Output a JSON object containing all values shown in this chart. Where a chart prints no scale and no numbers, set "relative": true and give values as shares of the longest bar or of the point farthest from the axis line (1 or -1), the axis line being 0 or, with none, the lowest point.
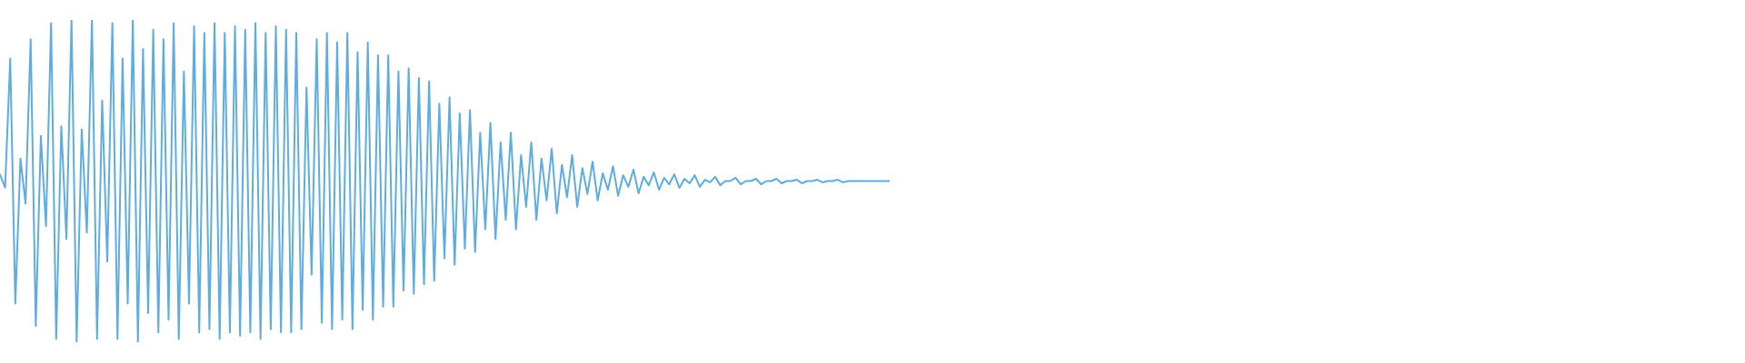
{
  "chart_data": {
    "type": "line",
    "relative": true,
    "color": "#5dade2",
    "categories": [
      null,
      null,
      null,
      null,
      null,
      null,
      null,
      null,
      null,
      null,
      null,
      null,
      null,
      null,
      null,
      null,
      null,
      null,
      null,
      null,
      null,
      null,
      null,
      null,
      null,
      null,
      null,
      null,
      null,
      null,
      null,
      null,
      null,
      null,
      null,
      null,
      null,
      null,
      null,
      null,
      null,
      null,
      null,
      null,
      null,
      null,
      null,
      null,
      null,
      null,
      null,
      null,
      null,
      null,
      null,
      null,
      null,
      null,
      null,
      null,
      null,
      null,
      null,
      null,
      null,
      null,
      null,
      null,
      null,
      null,
      null,
      null,
      null,
      null,
      null,
      null,
      null,
      null,
      null,
      null,
      null,
      null,
      null,
      null,
      null,
      null,
      null,
      null,
      null,
      null,
      null,
      null,
      null,
      null,
      null,
      null,
      null,
      null,
      null,
      null,
      null,
      null,
      null,
      null,
      null,
      null,
      null,
      null,
      null,
      null,
      null,
      null,
      null,
      null,
      null,
      null,
      null,
      null,
      null,
      null,
      null,
      null,
      null,
      null,
      null,
      null,
      null,
      null,
      null,
      null,
      null,
      null,
      null,
      null,
      null,
      null,
      null,
      null,
      null,
      null,
      null,
      null,
      null,
      null,
      null,
      null,
      null,
      null,
      null,
      null,
      null,
      null,
      null,
      null,
      null,
      null,
      null,
      null,
      null,
      null,
      null,
      null,
      null,
      null,
      null,
      null,
      null,
      null,
      null,
      null,
      null,
      null,
      null,
      null,
      null
    ],
    "values": [
      0.52,
      0.48,
      0.88,
      0.12,
      0.57,
      0.43,
      0.94,
      0.05,
      0.64,
      0.36,
      0.99,
      0.01,
      0.67,
      0.32,
      1,
      0,
      0.66,
      0.34,
      1,
      0.01,
      0.75,
      0.25,
      0.99,
      0.01,
      0.88,
      0.12,
      1,
      0,
      0.91,
      0.09,
      0.97,
      0.03,
      0.94,
      0.07,
      0.99,
      0.01,
      0.84,
      0.12,
      0.98,
      0.03,
      0.96,
      0.04,
      0.99,
      0.01,
      0.96,
      0.03,
      0.98,
      0.02,
      0.97,
      0.03,
      0.99,
      0.01,
      0.96,
      0.04,
      0.98,
      0.03,
      0.97,
      0.03,
      0.96,
      0.04,
      0.79,
      0.21,
      0.94,
      0.06,
      0.96,
      0.04,
      0.93,
      0.07,
      0.96,
      0.04,
      0.9,
      0.1,
      0.93,
      0.07,
      0.89,
      0.11,
      0.89,
      0.11,
      0.84,
      0.16,
      0.85,
      0.15,
      0.82,
      0.18,
      0.81,
      0.19,
      0.74,
      0.26,
      0.76,
      0.24,
      0.71,
      0.29,
      0.72,
      0.28,
      0.65,
      0.35,
      0.68,
      0.32,
      0.62,
      0.38,
      0.65,
      0.35,
      0.58,
      0.42,
      0.62,
      0.38,
      0.57,
      0.44,
      0.6,
      0.4,
      0.55,
      0.45,
      0.58,
      0.42,
      0.54,
      0.46,
      0.56,
      0.44,
      0.524,
      0.473,
      0.546,
      0.454,
      0.518,
      0.482,
      0.535,
      0.462,
      0.513,
      0.487,
      0.527,
      0.473,
      0.51,
      0.49,
      0.521,
      0.479,
      0.507,
      0.493,
      0.518,
      0.482,
      0.504,
      0.496,
      0.513,
      0.487,
      0.5,
      0.5,
      0.51,
      0.49,
      0.5,
      0.5,
      0.507,
      0.49,
      0.5,
      0.5,
      0.507,
      0.493,
      0.5,
      0.5,
      0.504,
      0.493,
      0.5,
      0.5,
      0.504,
      0.496,
      0.5,
      0.5,
      0.504,
      0.496,
      0.5,
      0.5,
      0.5,
      0.5,
      0.5,
      0.5,
      0.5,
      0.5,
      0.5
    ]
  }
}
